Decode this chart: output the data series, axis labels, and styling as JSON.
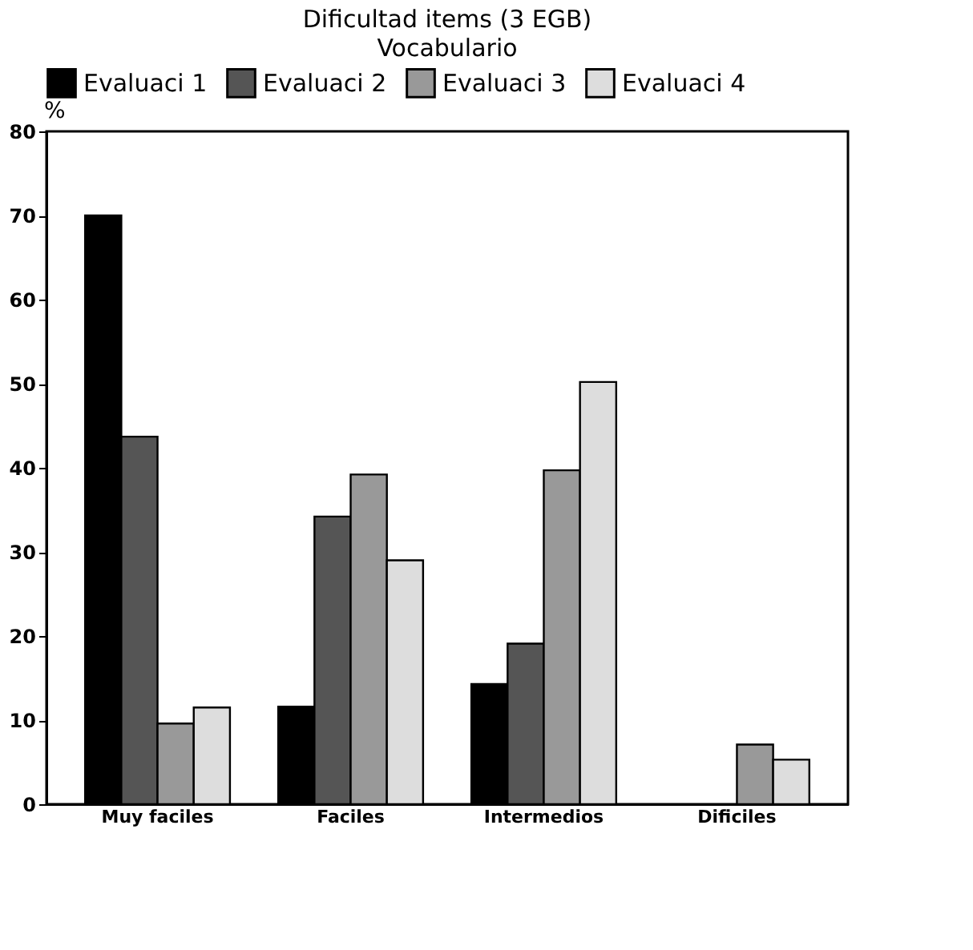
{
  "chart_data": {
    "type": "bar",
    "title": "Dificultad items (3 EGB)",
    "subtitle": "Vocabulario",
    "ylabel": "%",
    "categories": [
      "Muy faciles",
      "Faciles",
      "Intermedios",
      "Dificiles"
    ],
    "series": [
      {
        "name": "Evaluaci 1",
        "color": "#000000",
        "values": [
          70,
          11.6,
          14.3,
          null
        ]
      },
      {
        "name": "Evaluaci 2",
        "color": "#555555",
        "values": [
          43.7,
          34.2,
          19.1,
          null
        ]
      },
      {
        "name": "Evaluaci 3",
        "color": "#999999",
        "values": [
          9.6,
          39.2,
          39.7,
          7.1
        ]
      },
      {
        "name": "Evaluaci 4",
        "color": "#dddddd",
        "values": [
          11.5,
          29,
          50.2,
          5.3
        ]
      }
    ],
    "ylim": [
      0,
      80
    ],
    "yticks": [
      0,
      10,
      20,
      30,
      40,
      50,
      60,
      70,
      80
    ],
    "grid": false,
    "legend": "top"
  }
}
